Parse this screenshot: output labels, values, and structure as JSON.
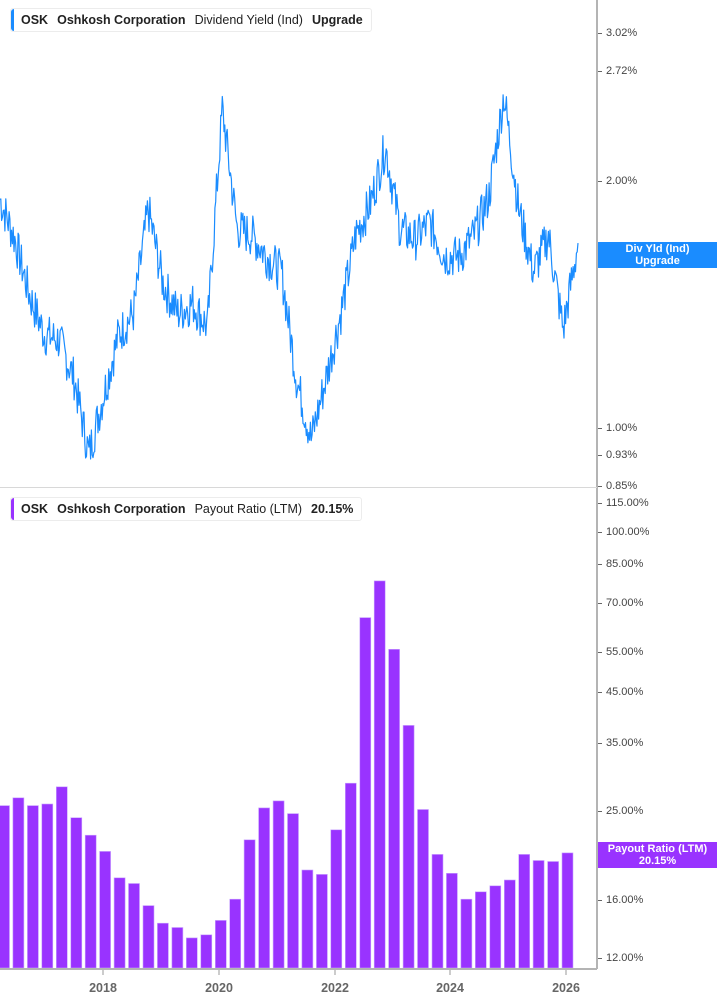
{
  "top_panel": {
    "legend": {
      "ticker": "OSK",
      "company": "Oshkosh Corporation",
      "metric": "Dividend Yield (Ind)",
      "value": "Upgrade",
      "color": "#1a8cff"
    },
    "y_ticks": [
      "3.02%",
      "2.72%",
      "2.00%",
      "1.00%",
      "0.93%",
      "0.85%"
    ],
    "tag": {
      "line1": "Div Yld (Ind)",
      "line2": "Upgrade",
      "color": "#1a8cff"
    }
  },
  "bottom_panel": {
    "legend": {
      "ticker": "OSK",
      "company": "Oshkosh Corporation",
      "metric": "Payout Ratio (LTM)",
      "value": "20.15%",
      "color": "#9933ff"
    },
    "y_ticks": [
      "115.00%",
      "100.00%",
      "85.00%",
      "70.00%",
      "55.00%",
      "45.00%",
      "35.00%",
      "25.00%",
      "20.00%",
      "16.00%",
      "12.00%"
    ],
    "tag": {
      "line1": "Payout Ratio (LTM)",
      "line2": "20.15%",
      "color": "#9933ff"
    }
  },
  "x_axis": {
    "labels": [
      "2018",
      "2020",
      "2022",
      "2024",
      "2026"
    ]
  },
  "chart_data": [
    {
      "type": "line",
      "title": "OSK Oshkosh Corporation Dividend Yield (Ind)",
      "ylabel": "Dividend Yield (%)",
      "yscale": "log",
      "ylim": [
        0.85,
        3.2
      ],
      "y_ticks": [
        3.02,
        2.72,
        2.0,
        1.0,
        0.93,
        0.85
      ],
      "x_ticks": [
        "2018",
        "2020",
        "2022",
        "2024",
        "2026"
      ],
      "series": [
        {
          "name": "Dividend Yield (Ind)",
          "color": "#1a8cff",
          "x": [
            "2016-06",
            "2016-09",
            "2016-12",
            "2017-03",
            "2017-06",
            "2017-09",
            "2017-12",
            "2018-03",
            "2018-06",
            "2018-09",
            "2018-12",
            "2019-03",
            "2019-06",
            "2019-09",
            "2019-12",
            "2020-03",
            "2020-06",
            "2020-09",
            "2020-12",
            "2021-03",
            "2021-06",
            "2021-09",
            "2021-12",
            "2022-03",
            "2022-06",
            "2022-09",
            "2022-12",
            "2023-03",
            "2023-06",
            "2023-09",
            "2023-12",
            "2024-03",
            "2024-06",
            "2024-09",
            "2024-12",
            "2025-03",
            "2025-06",
            "2025-09",
            "2025-12",
            "2026-01"
          ],
          "values": [
            1.9,
            1.7,
            1.45,
            1.3,
            1.28,
            1.15,
            0.93,
            1.1,
            1.3,
            1.38,
            1.85,
            1.5,
            1.38,
            1.42,
            1.33,
            2.45,
            1.75,
            1.72,
            1.62,
            1.55,
            1.15,
            0.97,
            1.15,
            1.38,
            1.72,
            1.88,
            2.2,
            1.75,
            1.7,
            1.78,
            1.62,
            1.62,
            1.72,
            1.92,
            2.55,
            1.85,
            1.55,
            1.72,
            1.32,
            1.68
          ]
        }
      ]
    },
    {
      "type": "bar",
      "title": "OSK Oshkosh Corporation Payout Ratio (LTM)",
      "ylabel": "Payout Ratio (%)",
      "yscale": "log",
      "ylim": [
        11.5,
        118
      ],
      "y_ticks": [
        115,
        100,
        85,
        70,
        55,
        45,
        35,
        25,
        20,
        16,
        12
      ],
      "x_ticks": [
        "2018",
        "2020",
        "2022",
        "2024",
        "2026"
      ],
      "categories": [
        "Q2 2016",
        "Q3 2016",
        "Q4 2016",
        "Q1 2017",
        "Q2 2017",
        "Q3 2017",
        "Q4 2017",
        "Q1 2018",
        "Q2 2018",
        "Q3 2018",
        "Q4 2018",
        "Q1 2019",
        "Q2 2019",
        "Q3 2019",
        "Q4 2019",
        "Q1 2020",
        "Q2 2020",
        "Q3 2020",
        "Q4 2020",
        "Q1 2021",
        "Q2 2021",
        "Q3 2021",
        "Q4 2021",
        "Q1 2022",
        "Q2 2022",
        "Q3 2022",
        "Q4 2022",
        "Q1 2023",
        "Q2 2023",
        "Q3 2023",
        "Q4 2023",
        "Q1 2024",
        "Q2 2024",
        "Q3 2024",
        "Q4 2024",
        "Q1 2025",
        "Q2 2025",
        "Q3 2025",
        "Q4 2025",
        "Q1 2026"
      ],
      "series": [
        {
          "name": "Payout Ratio (LTM)",
          "color": "#9933ff",
          "values": [
            25.5,
            26.5,
            25.5,
            25.7,
            28.0,
            24.0,
            22.0,
            20.3,
            17.8,
            17.3,
            15.5,
            14.2,
            13.9,
            13.2,
            13.4,
            14.4,
            16.0,
            21.5,
            25.2,
            26.1,
            24.5,
            18.5,
            18.1,
            22.6,
            28.5,
            65.0,
            78.0,
            55.5,
            38.0,
            25.0,
            20.0,
            18.2,
            16.0,
            16.6,
            17.1,
            17.6,
            20.0,
            19.4,
            19.3,
            20.15
          ]
        }
      ],
      "last_value_label": "20.15%"
    }
  ]
}
